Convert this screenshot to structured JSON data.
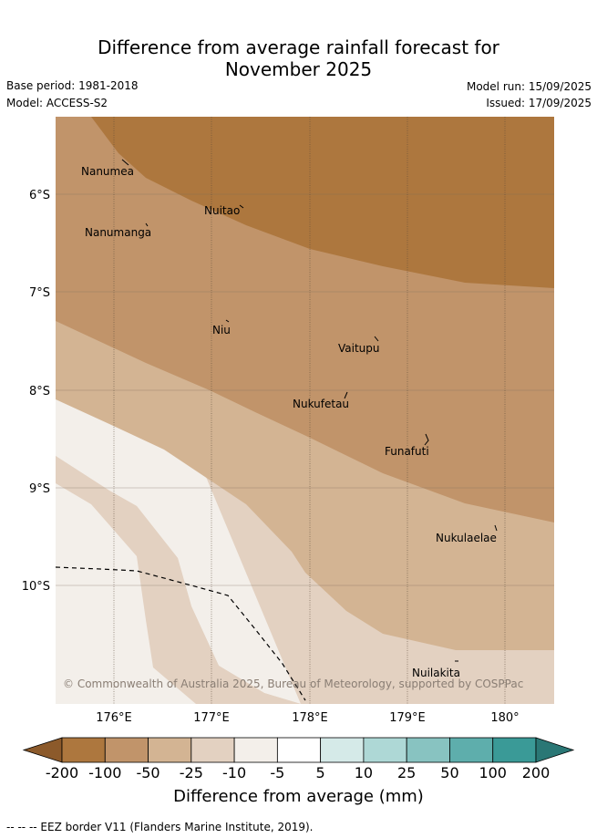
{
  "title_line1": "Difference from average rainfall forecast for",
  "title_line2": "November 2025",
  "meta": {
    "base_period": "Base period: 1981-2018",
    "model": "Model: ACCESS-S2",
    "model_run": "Model run: 15/09/2025",
    "issued": "Issued: 17/09/2025"
  },
  "map": {
    "lat_labels": [
      "6°S",
      "7°S",
      "8°S",
      "9°S",
      "10°S"
    ],
    "lon_labels": [
      "176°E",
      "177°E",
      "178°E",
      "179°E",
      "180°"
    ],
    "places": [
      "Nanumea",
      "Nuitao",
      "Nanumanga",
      "Niu",
      "Vaitupu",
      "Nukufetau",
      "Funafuti",
      "Nukulaelae",
      "Nuilakita"
    ],
    "copyright": "© Commonwealth of Australia 2025, Bureau of Meteorology, supported by COSPPac"
  },
  "colorbar": {
    "ticks": [
      "-200",
      "-100",
      "-50",
      "-25",
      "-10",
      "-5",
      "5",
      "10",
      "25",
      "50",
      "100",
      "200"
    ],
    "colors": [
      "#8c5a2b",
      "#ad773e",
      "#c1946a",
      "#d3b493",
      "#e3d1c1",
      "#f3efea",
      "#ffffff",
      "#d5eae8",
      "#aed8d6",
      "#88c3c1",
      "#5eaeac",
      "#3a9a97",
      "#2a7775"
    ],
    "label": "Difference from average (mm)"
  },
  "footnote": "--  --  -- EEZ border V11 (Flanders Marine Institute, 2019)."
}
